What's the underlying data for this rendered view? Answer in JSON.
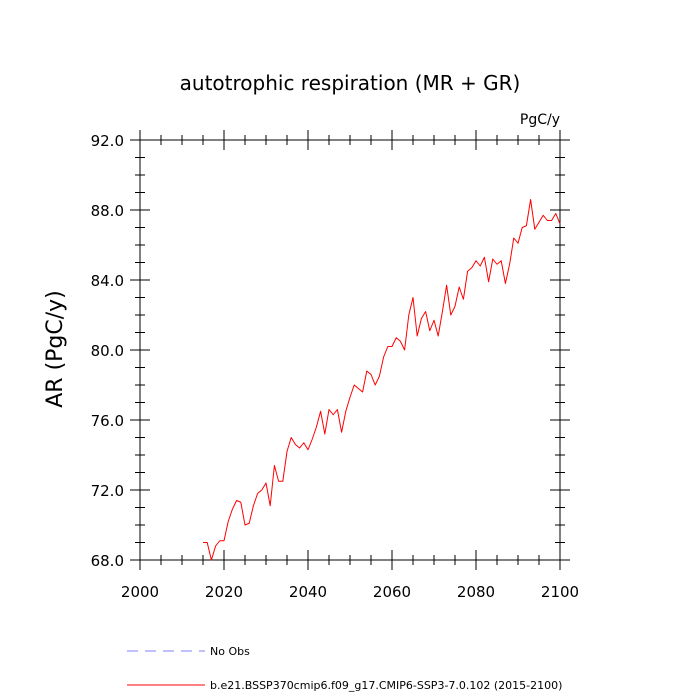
{
  "chart_data": {
    "type": "line",
    "title": "autotrophic respiration (MR + GR)",
    "units": "PgC/y",
    "xlabel": "",
    "ylabel": "AR  (PgC/y)",
    "xlim": [
      2000,
      2100
    ],
    "ylim": [
      68.0,
      92.0
    ],
    "x_ticks": [
      2000,
      2020,
      2040,
      2060,
      2080,
      2100
    ],
    "x_tick_labels": [
      "2000",
      "2020",
      "2040",
      "2060",
      "2080",
      "2100"
    ],
    "y_ticks": [
      68.0,
      72.0,
      76.0,
      80.0,
      84.0,
      88.0,
      92.0
    ],
    "y_tick_labels": [
      "68.0",
      "72.0",
      "76.0",
      "80.0",
      "84.0",
      "88.0",
      "92.0"
    ],
    "legend": {
      "placement": "bottom",
      "entries": [
        {
          "label": "No Obs",
          "style": "dashed",
          "color": "#8080ff"
        },
        {
          "label": "b.e21.BSSP370cmip6.f09_g17.CMIP6-SSP3-7.0.102 (2015-2100)",
          "style": "solid",
          "color": "#ff0000"
        }
      ]
    },
    "series": [
      {
        "name": "b.e21.BSSP370cmip6.f09_g17.CMIP6-SSP3-7.0.102 (2015-2100)",
        "color": "#ff0000",
        "x": [
          2015,
          2016,
          2017,
          2018,
          2019,
          2020,
          2021,
          2022,
          2023,
          2024,
          2025,
          2026,
          2027,
          2028,
          2029,
          2030,
          2031,
          2032,
          2033,
          2034,
          2035,
          2036,
          2037,
          2038,
          2039,
          2040,
          2041,
          2042,
          2043,
          2044,
          2045,
          2046,
          2047,
          2048,
          2049,
          2050,
          2051,
          2052,
          2053,
          2054,
          2055,
          2056,
          2057,
          2058,
          2059,
          2060,
          2061,
          2062,
          2063,
          2064,
          2065,
          2066,
          2067,
          2068,
          2069,
          2070,
          2071,
          2072,
          2073,
          2074,
          2075,
          2076,
          2077,
          2078,
          2079,
          2080,
          2081,
          2082,
          2083,
          2084,
          2085,
          2086,
          2087,
          2088,
          2089,
          2090,
          2091,
          2092,
          2093,
          2094,
          2095,
          2096,
          2097,
          2098,
          2099,
          2100
        ],
        "values": [
          69.0,
          69.0,
          68.0,
          68.8,
          69.1,
          69.1,
          70.2,
          70.9,
          71.4,
          71.3,
          70.0,
          70.1,
          71.1,
          71.8,
          72.0,
          72.4,
          71.1,
          73.4,
          72.5,
          72.5,
          74.2,
          75.0,
          74.6,
          74.4,
          74.7,
          74.3,
          74.9,
          75.6,
          76.5,
          75.2,
          76.6,
          76.3,
          76.6,
          75.3,
          76.5,
          77.3,
          78.0,
          77.8,
          77.6,
          78.8,
          78.6,
          78.0,
          78.5,
          79.6,
          80.2,
          80.2,
          80.7,
          80.5,
          80.0,
          82.0,
          83.0,
          80.8,
          81.8,
          82.2,
          81.1,
          81.7,
          80.8,
          82.2,
          83.7,
          82.0,
          82.5,
          83.6,
          82.9,
          84.5,
          84.7,
          85.1,
          84.8,
          85.3,
          83.9,
          85.2,
          84.9,
          85.1,
          83.8,
          84.9,
          86.4,
          86.1,
          87.0,
          87.1,
          88.6,
          86.9,
          87.3,
          87.7,
          87.4,
          87.4,
          87.8,
          87.2
        ]
      }
    ]
  }
}
